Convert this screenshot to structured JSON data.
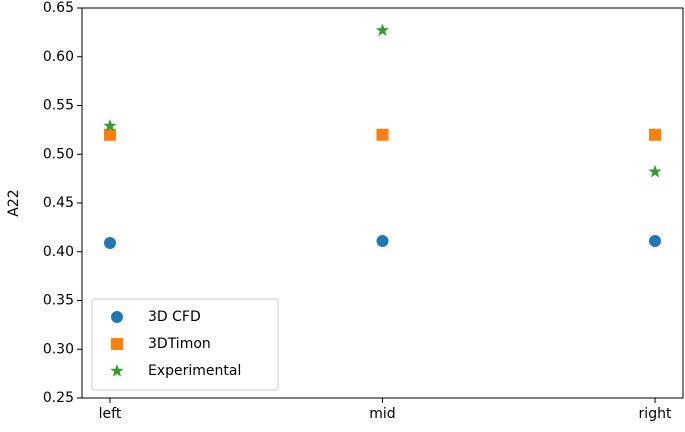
{
  "chart_data": {
    "type": "scatter",
    "y_label": "A22",
    "categories": [
      "left",
      "mid",
      "right"
    ],
    "series": [
      {
        "name": "3D CFD",
        "color": "#1f77b4",
        "marker": "circle",
        "values": [
          0.409,
          0.411,
          0.411
        ]
      },
      {
        "name": "3DTimon",
        "color": "#ff7f0e",
        "marker": "square",
        "values": [
          0.52,
          0.52,
          0.52
        ]
      },
      {
        "name": "Experimental",
        "color": "#2ca02c",
        "marker": "star",
        "values": [
          0.529,
          0.627,
          0.482
        ]
      }
    ],
    "ylim": [
      0.25,
      0.65
    ],
    "yticks": [
      0.25,
      {
        "value": 0.3,
        "label": "0.30"
      },
      0.35,
      {
        "value": 0.4,
        "label": "0.40"
      },
      0.45,
      {
        "value": 0.5,
        "label": "0.50"
      },
      0.55,
      {
        "value": 0.6,
        "label": "0.60"
      },
      0.65
    ],
    "legend": "lower left",
    "grid": false
  }
}
